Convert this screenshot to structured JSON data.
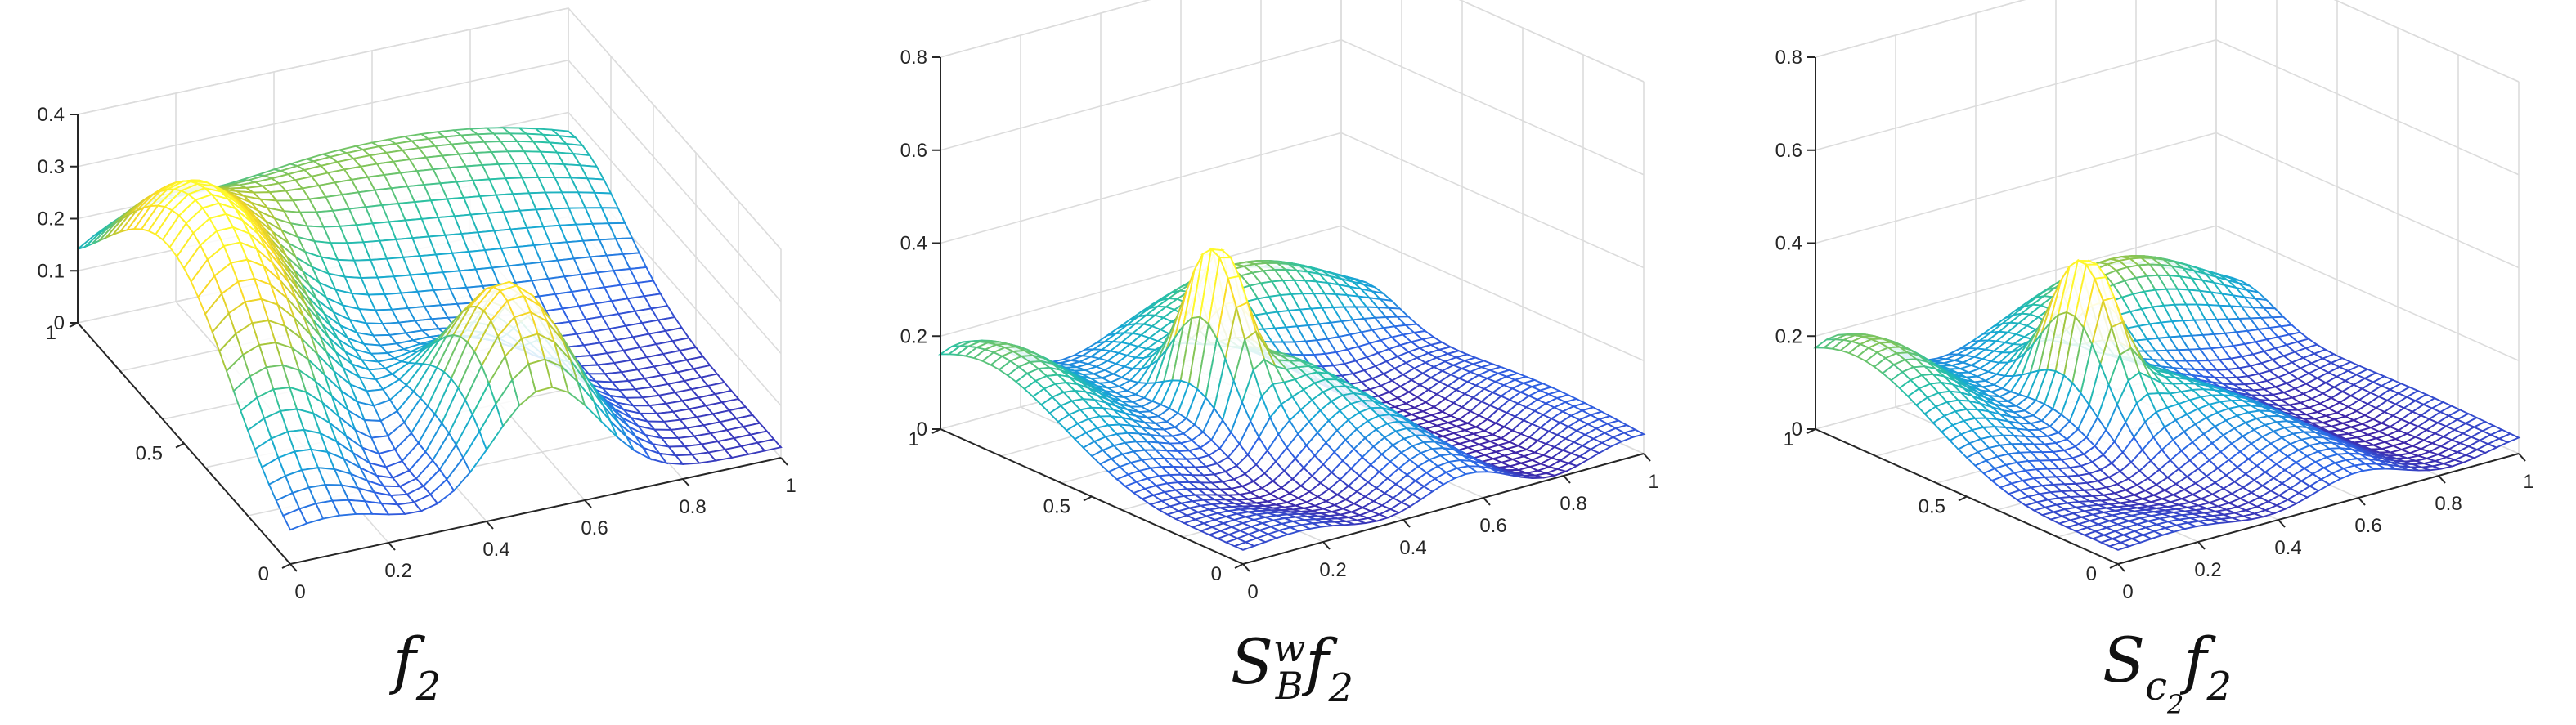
{
  "chart_data": [
    {
      "type": "surface",
      "caption": "f_2",
      "caption_parts": {
        "base": "f",
        "sub": "2"
      },
      "x_ticks": [
        "0",
        "0.2",
        "0.4",
        "0.6",
        "0.8",
        "1"
      ],
      "y_ticks": [
        "0",
        "0.5",
        "1"
      ],
      "z_ticks": [
        "0",
        "0.1",
        "0.2",
        "0.3",
        "0.4"
      ],
      "xlim": [
        0,
        1
      ],
      "ylim": [
        0,
        1
      ],
      "zlim": [
        0,
        0.4
      ],
      "grid": true,
      "mesh_size": [
        30,
        30
      ],
      "colormap": [
        "#3e26a8",
        "#2e64e6",
        "#17a7d6",
        "#29c1a4",
        "#a7c63b",
        "#f9d625",
        "#fef92b"
      ],
      "surface_features": [
        {
          "kind": "ridge",
          "x_center": 0.05,
          "y_center": 0.55,
          "peak": 0.38
        },
        {
          "kind": "ridge",
          "x_center": 0.5,
          "y_center": 0.2,
          "peak": 0.36
        },
        {
          "kind": "plateau",
          "x_center": 0.8,
          "y_center": 0.9,
          "peak": 0.2
        }
      ]
    },
    {
      "type": "surface",
      "caption": "S_B^w f_2",
      "caption_parts": {
        "base": "S",
        "sub": "B",
        "sup": "w",
        "tail": "f",
        "tail_sub": "2"
      },
      "x_ticks": [
        "0",
        "0.2",
        "0.4",
        "0.6",
        "0.8",
        "1"
      ],
      "y_ticks": [
        "0",
        "0.5",
        "1"
      ],
      "z_ticks": [
        "0",
        "0.2",
        "0.4",
        "0.6",
        "0.8"
      ],
      "xlim": [
        0,
        1
      ],
      "ylim": [
        0,
        1
      ],
      "zlim": [
        0,
        0.8
      ],
      "grid": true,
      "mesh_size": [
        36,
        36
      ],
      "colormap": [
        "#3e26a8",
        "#2e64e6",
        "#17a7d6",
        "#29c1a4",
        "#a7c63b",
        "#f9d625",
        "#fef92b"
      ],
      "surface_features": [
        {
          "kind": "spike",
          "x_center": 0.35,
          "y_center": 0.6,
          "peak": 0.33
        },
        {
          "kind": "ridge",
          "x_center": 0.05,
          "y_center": 0.9,
          "peak": 0.18
        },
        {
          "kind": "ridge",
          "x_center": 0.7,
          "y_center": 0.9,
          "peak": 0.22
        }
      ]
    },
    {
      "type": "surface",
      "caption": "S_{c_2} f_2",
      "caption_parts": {
        "base": "S",
        "sub": "c2",
        "tail": "f",
        "tail_sub": "2"
      },
      "x_ticks": [
        "0",
        "0.2",
        "0.4",
        "0.6",
        "0.8",
        "1"
      ],
      "y_ticks": [
        "0",
        "0.5",
        "1"
      ],
      "z_ticks": [
        "0",
        "0.2",
        "0.4",
        "0.6",
        "0.8"
      ],
      "xlim": [
        0,
        1
      ],
      "ylim": [
        0,
        1
      ],
      "zlim": [
        0,
        0.8
      ],
      "grid": true,
      "mesh_size": [
        36,
        36
      ],
      "colormap": [
        "#3e26a8",
        "#2e64e6",
        "#17a7d6",
        "#29c1a4",
        "#a7c63b",
        "#f9d625",
        "#fef92b"
      ],
      "surface_features": [
        {
          "kind": "spike",
          "x_center": 0.35,
          "y_center": 0.6,
          "peak": 0.3
        },
        {
          "kind": "ridge",
          "x_center": 0.05,
          "y_center": 0.9,
          "peak": 0.2
        },
        {
          "kind": "ridge",
          "x_center": 0.7,
          "y_center": 0.9,
          "peak": 0.22
        }
      ]
    }
  ]
}
